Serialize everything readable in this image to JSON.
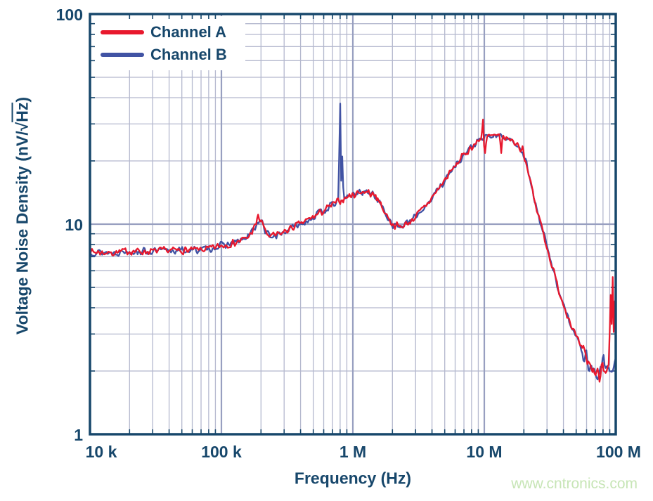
{
  "figure": {
    "watermark": "www.cntronics.com"
  },
  "chart_data": {
    "type": "line",
    "title": "",
    "xlabel": "Frequency (Hz)",
    "ylabel": "Voltage Noise Density (nV/√Hz)",
    "ylabel_parts": {
      "prefix": "Voltage Noise Density (nV/",
      "radical": "√",
      "radicand": "Hz",
      "suffix": ")"
    },
    "x_scale": "log",
    "y_scale": "log",
    "x_range_hz": [
      10000,
      100000000
    ],
    "y_range": [
      1,
      100
    ],
    "grid": "major and minor log grid on",
    "legend_position": "top-left",
    "x_ticks": [
      {
        "label": "10 k",
        "value": 10000
      },
      {
        "label": "100 k",
        "value": 100000
      },
      {
        "label": "1 M",
        "value": 1000000
      },
      {
        "label": "10 M",
        "value": 10000000
      },
      {
        "label": "100 M",
        "value": 100000000
      }
    ],
    "y_ticks": [
      {
        "label": "100",
        "value": 100
      },
      {
        "label": "10",
        "value": 10
      },
      {
        "label": "1",
        "value": 1
      }
    ],
    "colors": {
      "frame_and_text": "#17476b",
      "grid_minor": "#b4b8ce",
      "grid_major": "#989fc0",
      "channel_a": "#e8182d",
      "channel_b": "#4153a4",
      "watermark": "#c7e5b6"
    },
    "series": [
      {
        "name": "Channel A",
        "color": "#e8182d",
        "points_hz_nv": [
          [
            10000,
            7.4
          ],
          [
            14000,
            7.3
          ],
          [
            20000,
            7.45
          ],
          [
            28000,
            7.4
          ],
          [
            40000,
            7.5
          ],
          [
            56000,
            7.5
          ],
          [
            79000,
            7.6
          ],
          [
            100000,
            7.9
          ],
          [
            126000,
            8.15
          ],
          [
            158000,
            8.6
          ],
          [
            182000,
            9.8
          ],
          [
            200000,
            10.6
          ],
          [
            214000,
            9.3
          ],
          [
            234000,
            8.7
          ],
          [
            282000,
            9.0
          ],
          [
            355000,
            9.7
          ],
          [
            447000,
            10.4
          ],
          [
            562000,
            11.3
          ],
          [
            708000,
            12.4
          ],
          [
            891000,
            13.4
          ],
          [
            1000000,
            13.8
          ],
          [
            1150000,
            14.3
          ],
          [
            1320000,
            14.2
          ],
          [
            1510000,
            13.4
          ],
          [
            1740000,
            11.5
          ],
          [
            2000000,
            10.0
          ],
          [
            2290000,
            9.7
          ],
          [
            2630000,
            10.1
          ],
          [
            3160000,
            11.2
          ],
          [
            3800000,
            12.8
          ],
          [
            4570000,
            15.0
          ],
          [
            5500000,
            17.6
          ],
          [
            6610000,
            20.5
          ],
          [
            7940000,
            23.2
          ],
          [
            9120000,
            25.0
          ],
          [
            10500000,
            25.9
          ],
          [
            12000000,
            26.3
          ],
          [
            13800000,
            26.1
          ],
          [
            15800000,
            25.2
          ],
          [
            18200000,
            23.8
          ],
          [
            19500000,
            21.8
          ],
          [
            20900000,
            19.5
          ],
          [
            22400000,
            16.0
          ],
          [
            24000000,
            13.0
          ],
          [
            25700000,
            11.0
          ],
          [
            27500000,
            9.7
          ],
          [
            30200000,
            7.6
          ],
          [
            33100000,
            6.2
          ],
          [
            36300000,
            5.0
          ],
          [
            39800000,
            4.2
          ],
          [
            43700000,
            3.6
          ],
          [
            47900000,
            3.1
          ],
          [
            52500000,
            2.7
          ],
          [
            57500000,
            2.4
          ],
          [
            63100000,
            2.15
          ],
          [
            69200000,
            1.98
          ],
          [
            75900000,
            1.9
          ],
          [
            79400000,
            2.3
          ],
          [
            83200000,
            2.05
          ],
          [
            87100000,
            2.0
          ],
          [
            91200000,
            2.1
          ],
          [
            95500000,
            2.1
          ],
          [
            100000000,
            2.3
          ]
        ],
        "spikes_hz_nv": [
          [
            190500,
            11.1
          ],
          [
            1550000,
            13.3
          ],
          [
            9700000,
            31.5
          ],
          [
            10200000,
            21.8
          ],
          [
            13500000,
            21.8
          ],
          [
            19500000,
            23.5
          ],
          [
            92000000,
            4.6
          ],
          [
            94500000,
            5.6
          ],
          [
            97700000,
            4.3
          ]
        ]
      },
      {
        "name": "Channel B",
        "color": "#4153a4",
        "points_hz_nv": [
          [
            10000,
            7.4
          ],
          [
            14000,
            7.3
          ],
          [
            20000,
            7.45
          ],
          [
            28000,
            7.4
          ],
          [
            40000,
            7.5
          ],
          [
            56000,
            7.5
          ],
          [
            79000,
            7.6
          ],
          [
            100000,
            7.9
          ],
          [
            126000,
            8.15
          ],
          [
            158000,
            8.6
          ],
          [
            182000,
            9.8
          ],
          [
            200000,
            10.6
          ],
          [
            214000,
            9.3
          ],
          [
            234000,
            8.7
          ],
          [
            282000,
            9.0
          ],
          [
            355000,
            9.7
          ],
          [
            447000,
            10.4
          ],
          [
            562000,
            11.3
          ],
          [
            708000,
            12.4
          ],
          [
            891000,
            13.4
          ],
          [
            1000000,
            13.8
          ],
          [
            1150000,
            14.3
          ],
          [
            1320000,
            14.2
          ],
          [
            1510000,
            13.4
          ],
          [
            1740000,
            11.5
          ],
          [
            2000000,
            10.0
          ],
          [
            2290000,
            9.7
          ],
          [
            2630000,
            10.1
          ],
          [
            3160000,
            11.2
          ],
          [
            3800000,
            12.8
          ],
          [
            4570000,
            15.0
          ],
          [
            5500000,
            17.6
          ],
          [
            6610000,
            20.5
          ],
          [
            7940000,
            23.2
          ],
          [
            9120000,
            25.0
          ],
          [
            10500000,
            25.9
          ],
          [
            12000000,
            26.3
          ],
          [
            13800000,
            26.1
          ],
          [
            15800000,
            25.2
          ],
          [
            18200000,
            23.8
          ],
          [
            19500000,
            21.8
          ],
          [
            20900000,
            19.5
          ],
          [
            22400000,
            16.0
          ],
          [
            24000000,
            13.0
          ],
          [
            25700000,
            11.0
          ],
          [
            27500000,
            9.7
          ],
          [
            30200000,
            7.6
          ],
          [
            33100000,
            6.2
          ],
          [
            36300000,
            5.0
          ],
          [
            39800000,
            4.2
          ],
          [
            43700000,
            3.6
          ],
          [
            47900000,
            3.1
          ],
          [
            52500000,
            2.7
          ],
          [
            57500000,
            2.4
          ],
          [
            63100000,
            2.15
          ],
          [
            69200000,
            1.98
          ],
          [
            75900000,
            1.9
          ],
          [
            79400000,
            2.3
          ],
          [
            83200000,
            2.05
          ],
          [
            87100000,
            2.0
          ],
          [
            91200000,
            2.1
          ],
          [
            95500000,
            2.1
          ],
          [
            100000000,
            2.2
          ]
        ],
        "spikes_hz_nv": [
          [
            200000,
            10.3
          ],
          [
            794000,
            37.5
          ],
          [
            832000,
            21.0
          ]
        ]
      }
    ]
  }
}
